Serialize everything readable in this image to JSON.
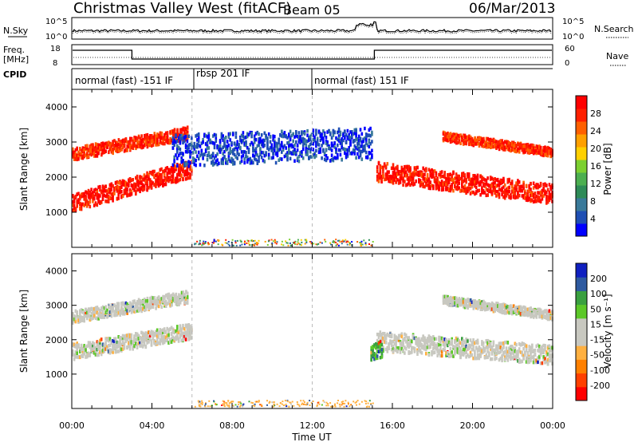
{
  "header": {
    "station": "Christmas Valley West (fitACF)",
    "beam": "Beam 05",
    "date": "06/Mar/2013"
  },
  "strips": {
    "nsky_label": "N.Sky",
    "nsky_ticks": [
      "10^5",
      "10^0"
    ],
    "nsearch_label": "N.Search",
    "nsearch_ticks": [
      "10^5",
      "10^0"
    ],
    "freq_label_line1": "Freq.",
    "freq_label_line2": "[MHz]",
    "freq_ticks": [
      "18",
      "8"
    ],
    "nave_label": "Nave",
    "nave_ticks": [
      "60",
      "0"
    ],
    "cpid_label": "CPID",
    "cpid_segments": [
      {
        "label": "normal (fast) -151 IF",
        "start": 0,
        "end": 6.7
      },
      {
        "label": "rbsp 201 IF",
        "start": 6.7,
        "end": 12.0
      },
      {
        "label": "normal (fast) 151 IF",
        "start": 12.0,
        "end": 24.0
      }
    ]
  },
  "chart_data": [
    {
      "type": "heatmap",
      "panel": "power",
      "xlabel": "",
      "ylabel": "Slant Range [km]",
      "xlim": [
        0,
        24
      ],
      "ylim": [
        0,
        4500
      ],
      "yticks": [
        1000,
        2000,
        3000,
        4000
      ],
      "xticks": [
        "00:00",
        "04:00",
        "08:00",
        "12:00",
        "16:00",
        "20:00",
        "00:00"
      ],
      "colorbar_label": "Power [dB]",
      "colorbar_ticks": [
        "28",
        "24",
        "20",
        "16",
        "12",
        "8",
        "4"
      ],
      "colorbar_colors": [
        "#0000ff",
        "#1f4fb4",
        "#3a7a9a",
        "#2e8b57",
        "#4caf50",
        "#7cd030",
        "#ffd000",
        "#ffa000",
        "#ff6000",
        "#ff2000",
        "#ff0000"
      ],
      "regions": [
        {
          "x": [
            0,
            6.0
          ],
          "y_center": [
            1300,
            2300
          ],
          "width": 500,
          "color_level": 0.95
        },
        {
          "x": [
            0,
            5.8
          ],
          "y_center": [
            2700,
            3300
          ],
          "width": 350,
          "color_level": 0.9
        },
        {
          "x": [
            5.0,
            15.0
          ],
          "y_center": [
            2800,
            3000
          ],
          "width": 900,
          "color_level": 0.08
        },
        {
          "x": [
            15.2,
            24
          ],
          "y_center": [
            2200,
            1550
          ],
          "width": 550,
          "color_level": 0.95
        },
        {
          "x": [
            18.5,
            24
          ],
          "y_center": [
            3200,
            2750
          ],
          "width": 250,
          "color_level": 0.9
        }
      ]
    },
    {
      "type": "heatmap",
      "panel": "velocity",
      "xlabel": "Time UT",
      "ylabel": "Slant Range [km]",
      "xlim": [
        0,
        24
      ],
      "ylim": [
        0,
        4500
      ],
      "yticks": [
        1000,
        2000,
        3000,
        4000
      ],
      "xticks": [
        "00:00",
        "04:00",
        "08:00",
        "12:00",
        "16:00",
        "20:00",
        "00:00"
      ],
      "colorbar_label": "Velocity [m s⁻¹]",
      "colorbar_ticks": [
        "200",
        "100",
        "50",
        "15",
        "-15",
        "-50",
        "-100",
        "-200"
      ],
      "colorbar_colors": [
        "#ff0000",
        "#ff4000",
        "#ff8000",
        "#ffb040",
        "#c8c8c0",
        "#c8c8c0",
        "#5cc828",
        "#3aa040",
        "#2e5aa0",
        "#1020c0"
      ],
      "regions": [
        {
          "x": [
            0,
            6.0
          ],
          "y_center": [
            1700,
            2300
          ],
          "width": 450,
          "color_level": 0.5
        },
        {
          "x": [
            0,
            5.8
          ],
          "y_center": [
            2700,
            3300
          ],
          "width": 350,
          "color_level": 0.5
        },
        {
          "x": [
            15.2,
            24
          ],
          "y_center": [
            2000,
            1600
          ],
          "width": 550,
          "color_level": 0.5
        },
        {
          "x": [
            18.5,
            24
          ],
          "y_center": [
            3200,
            2750
          ],
          "width": 250,
          "color_level": 0.5
        },
        {
          "x": [
            14.9,
            15.5
          ],
          "y_center": [
            1700,
            1800
          ],
          "width": 500,
          "color_level": 0.75
        }
      ]
    }
  ]
}
